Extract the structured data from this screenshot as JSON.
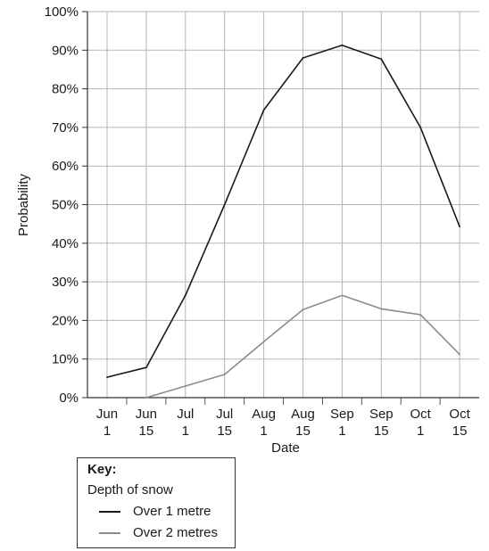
{
  "chart_data": {
    "type": "line",
    "categories": [
      [
        "Jun",
        "1"
      ],
      [
        "Jun",
        "15"
      ],
      [
        "Jul",
        "1"
      ],
      [
        "Jul",
        "15"
      ],
      [
        "Aug",
        "1"
      ],
      [
        "Aug",
        "15"
      ],
      [
        "Sep",
        "1"
      ],
      [
        "Sep",
        "15"
      ],
      [
        "Oct",
        "1"
      ],
      [
        "Oct",
        "15"
      ]
    ],
    "series": [
      {
        "name": "Over 1 metre",
        "color": "#1a1a1a",
        "values": [
          5.3,
          7.8,
          26.5,
          50.0,
          74.5,
          88.0,
          91.3,
          87.7,
          70.0,
          44.3
        ]
      },
      {
        "name": "Over 2 metres",
        "color": "#8c8c8c",
        "values": [
          null,
          0.0,
          3.0,
          6.0,
          14.5,
          22.8,
          26.5,
          23.0,
          21.5,
          11.2
        ]
      }
    ],
    "yticks": [
      "0%",
      "10%",
      "20%",
      "30%",
      "40%",
      "50%",
      "60%",
      "70%",
      "80%",
      "90%",
      "100%"
    ],
    "ylim": [
      0,
      100
    ],
    "xlabel": "Date",
    "ylabel": "Probability",
    "grid": true,
    "legend_position": "bottom-left"
  },
  "key": {
    "title": "Key:",
    "subtitle": "Depth of snow",
    "entries": [
      "Over 1 metre",
      "Over 2 metres"
    ]
  }
}
